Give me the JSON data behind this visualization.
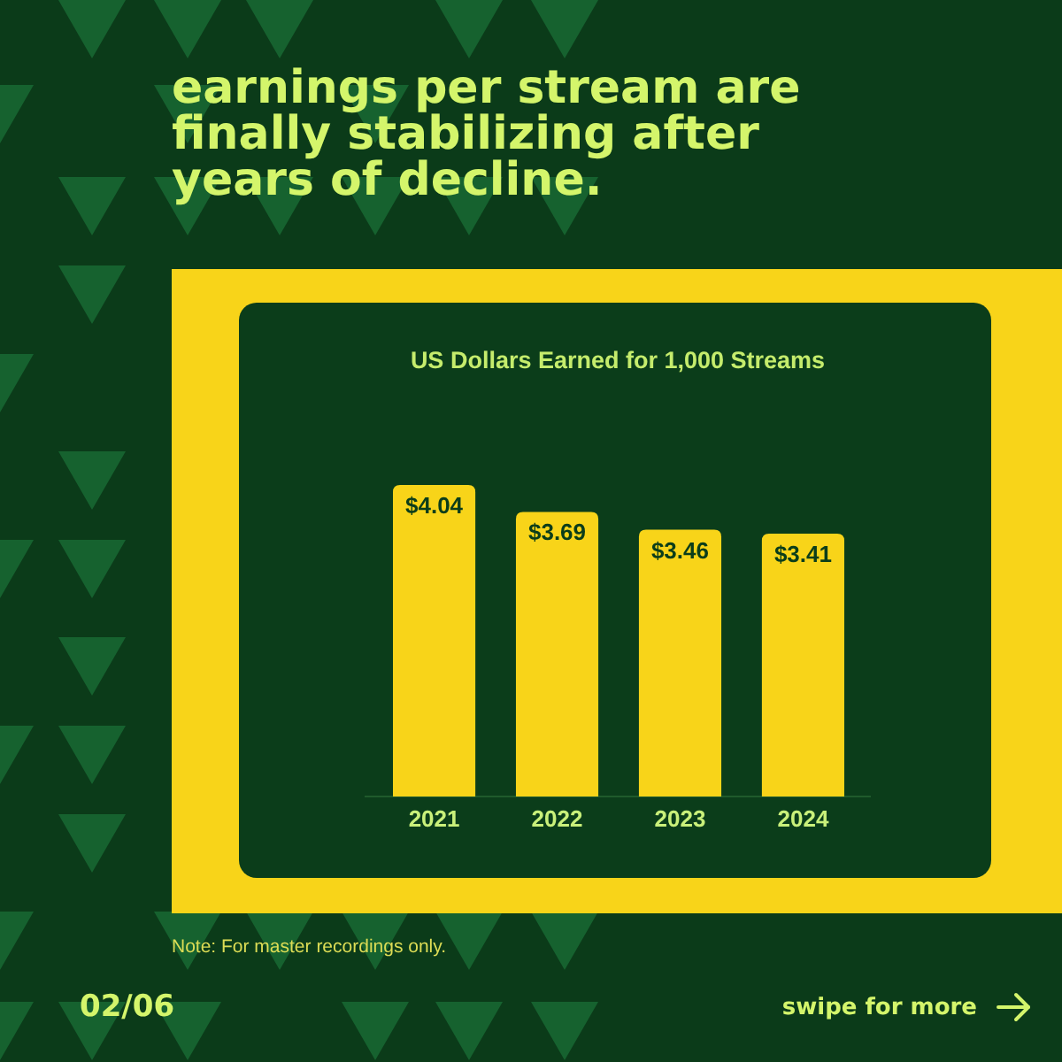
{
  "chart_data": {
    "type": "bar",
    "title": "earnings per stream are finally stabilizing after years of decline.",
    "subtitle": "US Dollars Earned for 1,000 Streams",
    "categories": [
      "2021",
      "2022",
      "2023",
      "2024"
    ],
    "values": [
      4.04,
      3.69,
      3.46,
      3.41
    ],
    "color": "#f8d419",
    "value_labels": [
      "$4.04",
      "$3.69",
      "$3.46",
      "$3.41"
    ],
    "annotations": [
      "Note: For master recordings only.",
      "02/06",
      "swipe for more"
    ]
  }
}
